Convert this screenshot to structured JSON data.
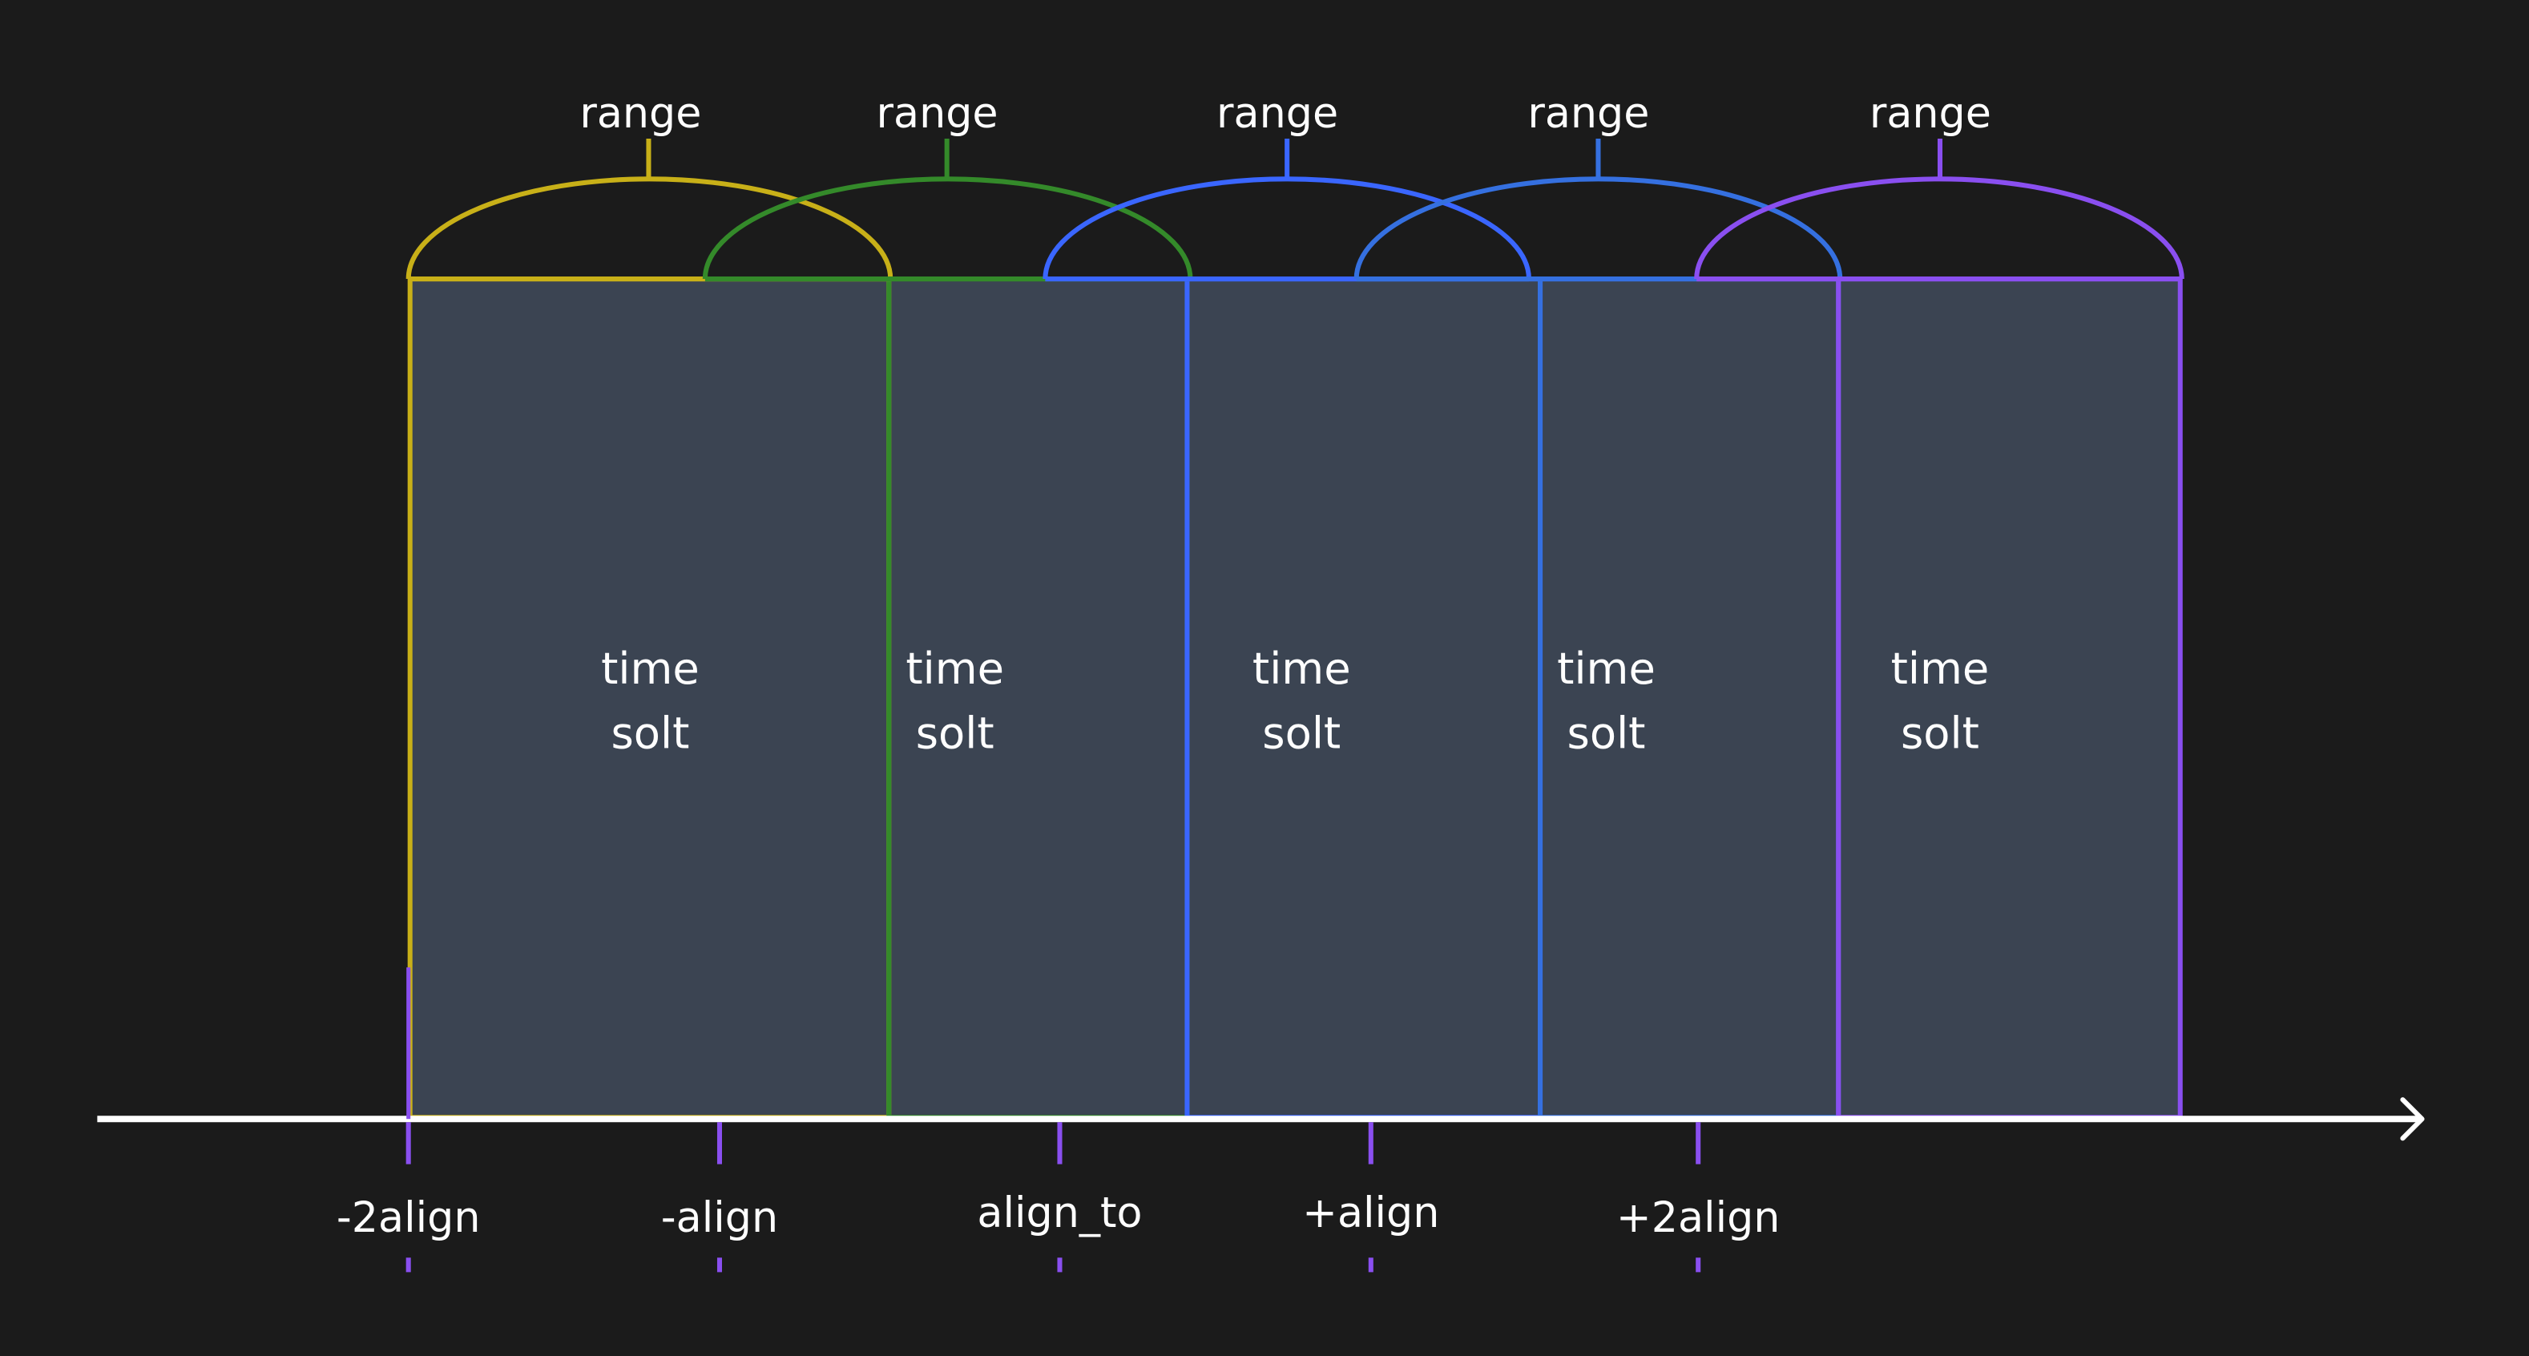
{
  "background_color": "#1b1b1b",
  "slot_fill_color": "#3b4452",
  "axis_color": "#ffffff",
  "tick_color": "#8a4ff0",
  "slots": [
    {
      "label_line1": "time",
      "label_line2": "solt",
      "range_label": "range",
      "color": "#c8b018"
    },
    {
      "label_line1": "time",
      "label_line2": "solt",
      "range_label": "range",
      "color": "#348a2a"
    },
    {
      "label_line1": "time",
      "label_line2": "solt",
      "range_label": "range",
      "color": "#3a66ff"
    },
    {
      "label_line1": "time",
      "label_line2": "solt",
      "range_label": "range",
      "color": "#3570e0"
    },
    {
      "label_line1": "time",
      "label_line2": "solt",
      "range_label": "range",
      "color": "#8a4ff0"
    }
  ],
  "ticks": [
    {
      "label": "-2align"
    },
    {
      "label": "-align"
    },
    {
      "label": "align_to"
    },
    {
      "label": "+align"
    },
    {
      "label": "+2align"
    }
  ]
}
